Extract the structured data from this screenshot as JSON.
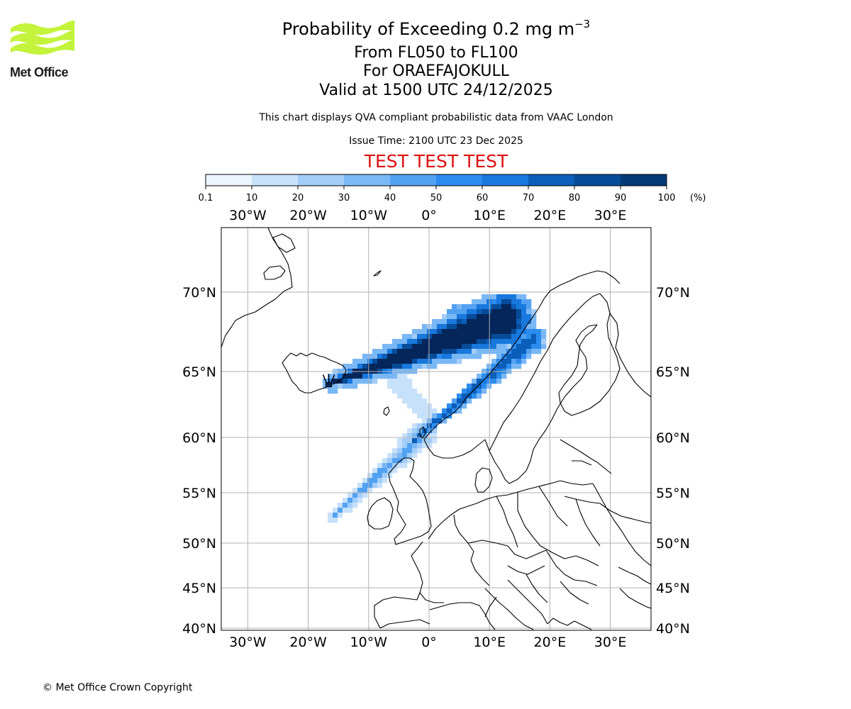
{
  "logo": {
    "text": "Met Office",
    "color": "#c4f33c"
  },
  "header": {
    "title_prefix": "Probability of Exceeding 0.2 mg m",
    "title_exponent": "−3",
    "levels": "From FL050 to FL100",
    "volcano": "For ORAEFAJOKULL",
    "valid": "Valid at 1500 UTC 24/12/2025",
    "description": "This chart displays QVA compliant probabilistic data from VAAC London",
    "issue": "Issue Time: 2100 UTC 23 Dec 2025",
    "banner": "TEST TEST TEST",
    "banner_color": "#dd1111"
  },
  "colorbar": {
    "tick_labels": [
      "0.1",
      "10",
      "20",
      "30",
      "40",
      "50",
      "60",
      "70",
      "80",
      "90",
      "100"
    ],
    "colors": [
      "#ebf4fe",
      "#c8e1fb",
      "#a3cdf8",
      "#7ab7f5",
      "#53a2f2",
      "#2c8cee",
      "#1878dd",
      "#0b5eb9",
      "#074c98",
      "#053b78",
      "#05265a"
    ],
    "unit": "(%)"
  },
  "map": {
    "lon_labels": [
      "30°W",
      "20°W",
      "10°W",
      "0°",
      "10°E",
      "20°E",
      "30°E"
    ],
    "lat_labels": [
      "70°N",
      "65°N",
      "60°N",
      "55°N",
      "50°N",
      "45°N",
      "40°N"
    ],
    "volcano_lon": -16.6,
    "volcano_lat": 64.0,
    "gridline_color": "#b0b0b0",
    "coast_color": "#000000"
  },
  "footer": {
    "copyright": "© Met Office Crown Copyright"
  }
}
